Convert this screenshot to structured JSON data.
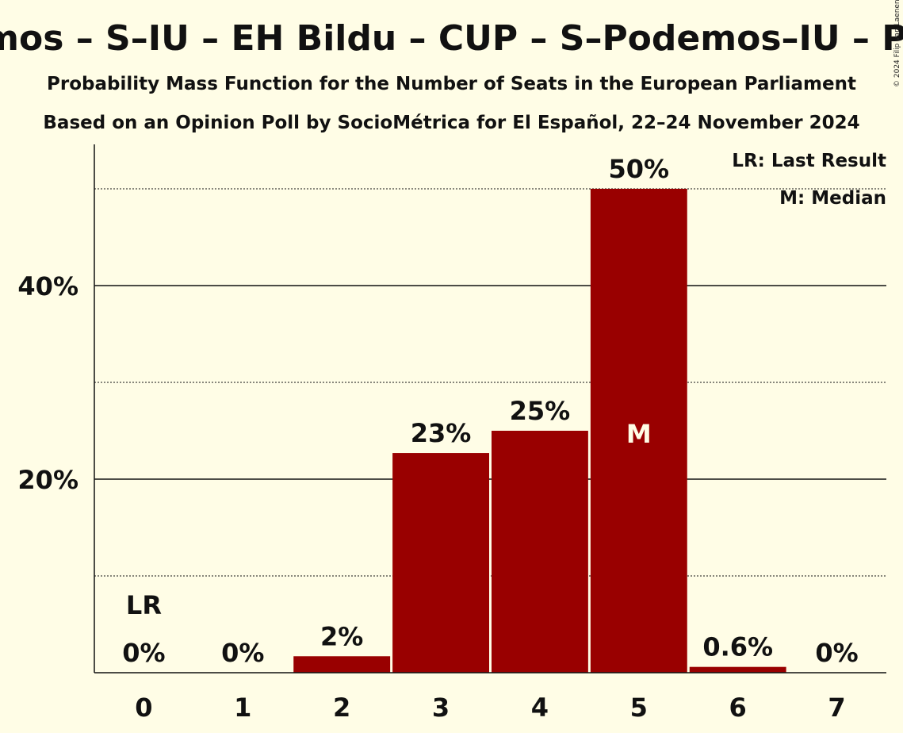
{
  "chart_data": {
    "type": "bar",
    "title": "Podemos – S–IU – EH Bildu – CUP – S–Podemos–IU – PACMA",
    "subtitle": "Probability Mass Function for the Number of Seats in the European Parliament",
    "subtitle2": "Based on an Opinion Poll by SocioMétrica for El Español, 22–24 November 2024",
    "copyright": "© 2024 Filip van Laenen",
    "categories": [
      "0",
      "1",
      "2",
      "3",
      "4",
      "5",
      "6",
      "7"
    ],
    "values": [
      0,
      0,
      1.7,
      22.7,
      25,
      50,
      0.6,
      0
    ],
    "value_labels": [
      "0%",
      "0%",
      "2%",
      "23%",
      "25%",
      "50%",
      "0.6%",
      "0%"
    ],
    "y_ticks": [
      20,
      40
    ],
    "y_tick_labels": [
      "20%",
      "40%"
    ],
    "y_minor_ticks": [
      10,
      30,
      50
    ],
    "ylim": [
      0,
      54.5
    ],
    "last_result_index": 0,
    "last_result_marker": "LR",
    "median_index": 5,
    "median_marker": "M",
    "legend": {
      "position": "top-right",
      "entries": [
        "LR: Last Result",
        "M: Median"
      ]
    },
    "colors": {
      "bar": "#990000",
      "background": "#fffde6",
      "text": "#111111",
      "median_text": "#fffde6"
    }
  }
}
